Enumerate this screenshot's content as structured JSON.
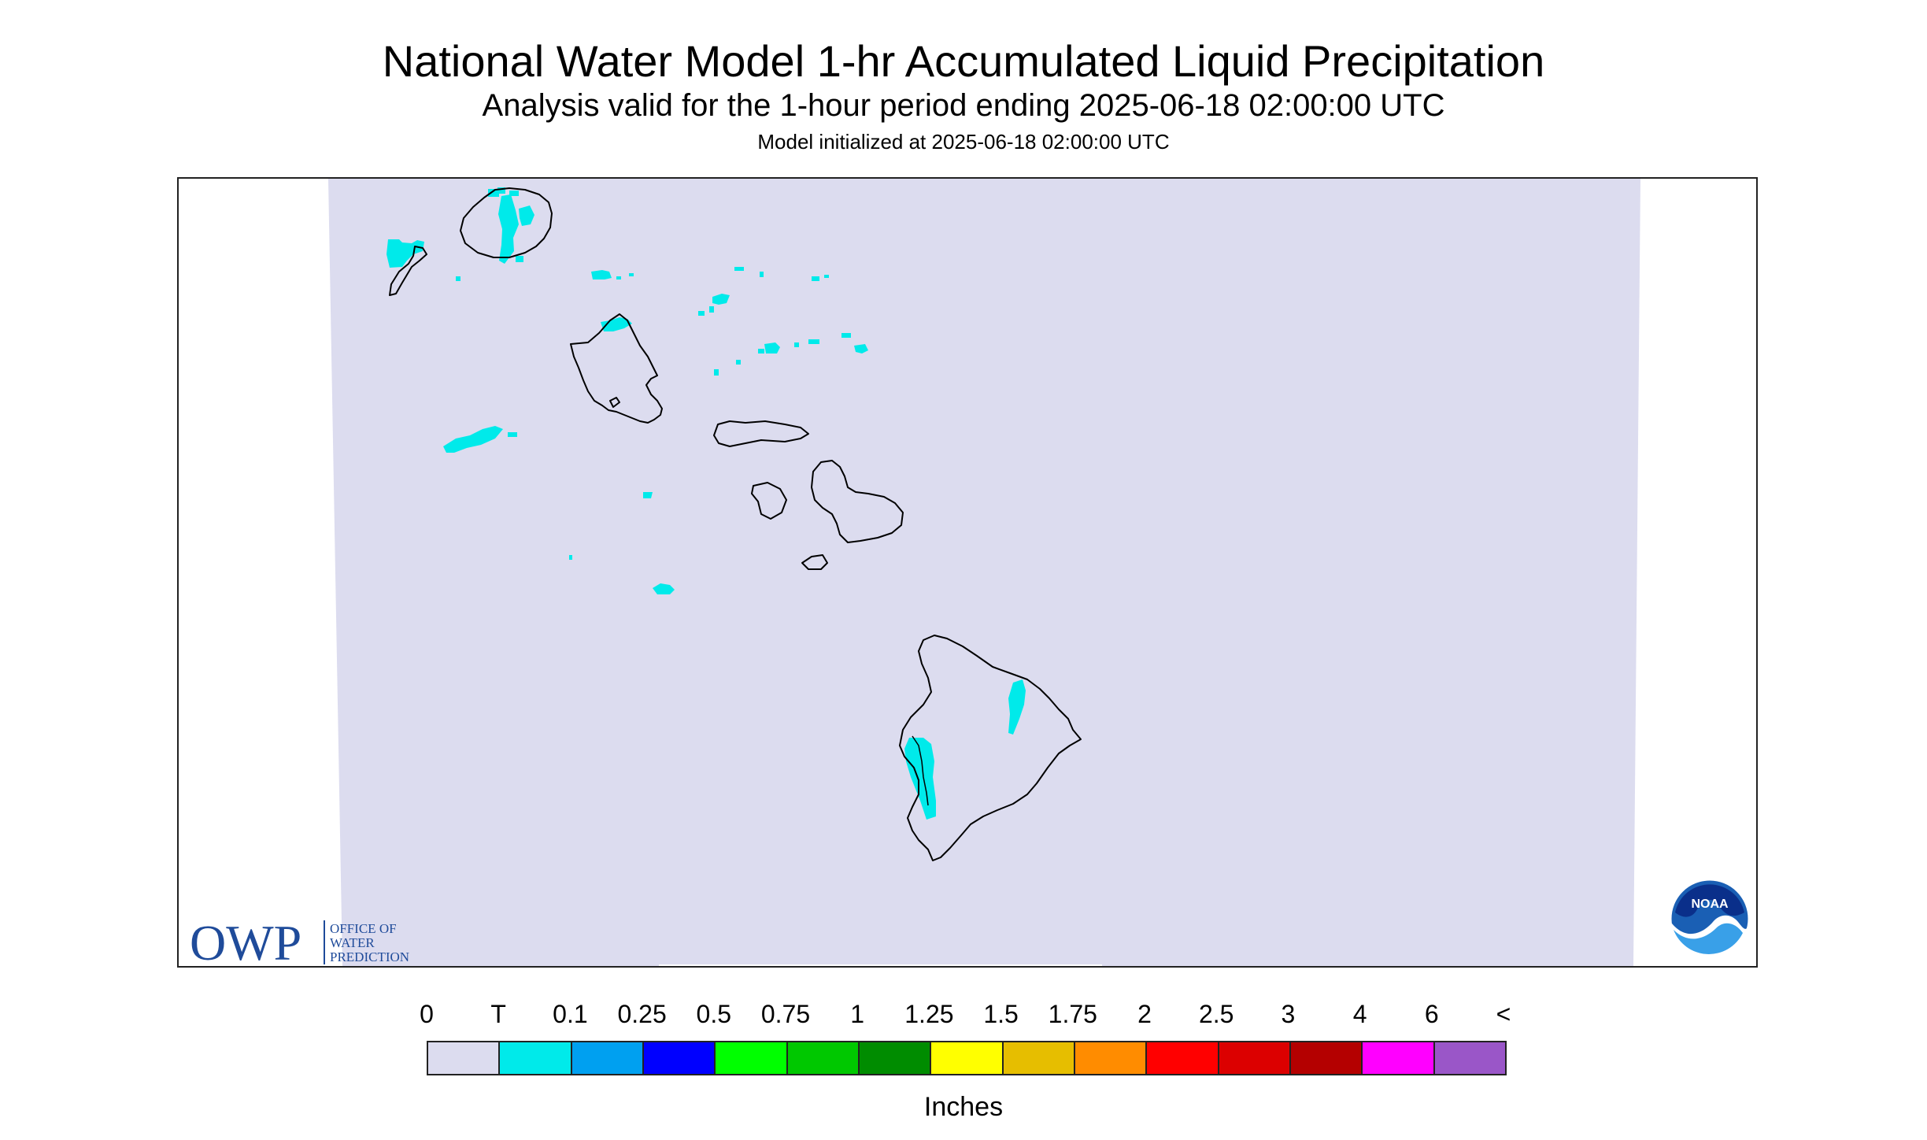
{
  "title": "National Water Model 1-hr Accumulated Liquid Precipitation",
  "subtitle": "Analysis valid for the 1-hour period ending 2025-06-18 02:00:00 UTC",
  "init_text": "Model initialized at 2025-06-18 02:00:00 UTC",
  "logos": {
    "owp_letters": "OWP",
    "owp_line1": "OFFICE OF",
    "owp_line2": "WATER",
    "owp_line3": "PREDICTION",
    "noaa_text": "NOAA"
  },
  "legend": {
    "labels": [
      "0",
      "T",
      "0.1",
      "0.25",
      "0.5",
      "0.75",
      "1",
      "1.25",
      "1.5",
      "1.75",
      "2",
      "2.5",
      "3",
      "4",
      "6",
      "<"
    ],
    "colors": [
      "#dcdcef",
      "#00eaea",
      "#00a0f0",
      "#0000ff",
      "#00ff00",
      "#00c800",
      "#008c00",
      "#ffff00",
      "#e6be00",
      "#ff8c00",
      "#ff0000",
      "#dc0000",
      "#b40000",
      "#ff00ff",
      "#9a56c8"
    ],
    "units": "Inches"
  },
  "colors": {
    "domain": "#dcdcef",
    "trace_precip": "#00eaea",
    "coastline": "#000000",
    "owp_blue": "#1f4b9a"
  }
}
